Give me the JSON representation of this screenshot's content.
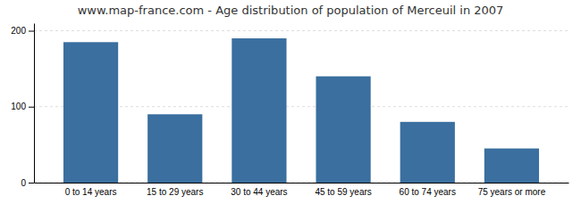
{
  "chart_data": {
    "type": "bar",
    "title": "www.map-france.com - Age distribution of population of Merceuil in 2007",
    "categories": [
      "0 to 14 years",
      "15 to 29 years",
      "30 to 44 years",
      "45 to 59 years",
      "60 to 74 years",
      "75 years or more"
    ],
    "values": [
      185,
      90,
      190,
      140,
      80,
      45
    ],
    "color": "#3a6f9f",
    "ylim": [
      0,
      210
    ],
    "yticks": [
      0,
      100,
      200
    ],
    "grid": true
  }
}
